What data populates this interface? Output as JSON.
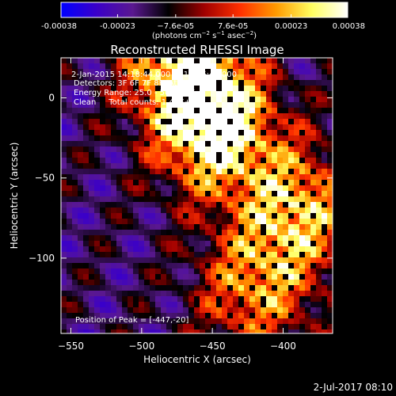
{
  "chart_data": {
    "type": "heatmap",
    "title": "Reconstructed RHESSI Image",
    "xlabel": "Heliocentric X (arcsec)",
    "ylabel": "Heliocentric Y (arcsec)",
    "xlim": [
      -557,
      -365
    ],
    "ylim": [
      -147,
      25
    ],
    "x_ticks": [
      -550,
      -500,
      -450,
      -400
    ],
    "x_tick_labels": [
      "−550",
      "−500",
      "−450",
      "−400"
    ],
    "y_ticks": [
      -100,
      -50,
      0
    ],
    "y_tick_labels": [
      "−100",
      "−50",
      "0"
    ],
    "colorbar": {
      "range": [
        -0.00038,
        0.00038
      ],
      "ticks": [
        -0.00038,
        -0.00023,
        -7.6e-05,
        7.6e-05,
        0.00023,
        0.00038
      ],
      "tick_labels": [
        "-0.00038",
        "-0.00023",
        "−7.6e-05",
        "7.6e-05",
        "0.00023",
        "0.00038"
      ],
      "units_text": "(photons cm",
      "units_exp1": "−2",
      "units_s": " s",
      "units_exp2": "−1",
      "units_asec": " asec",
      "units_exp3": "−2",
      "units_close": ")",
      "colors": [
        "#0000ff",
        "#3b00c8",
        "#5a1890",
        "#000000",
        "#a00000",
        "#ff3000",
        "#ff9a00",
        "#ffff60",
        "#ffffff"
      ]
    },
    "annotations": {
      "time_range": "2-Jan-2015 14:18:44.000 to 14:26:44.000",
      "detectors": "Detectors: 3F 6F 7F 8F, Att 0",
      "energy_range": "Energy Range: 25.0 - 50.0 keV",
      "method": "Clean     Total counts: 1.42E+04",
      "peak": "Position of Peak = [-447,-20]"
    },
    "peak_position": [
      -447,
      -20
    ],
    "emission_sources": [
      {
        "x": -470,
        "y": 20,
        "peak_fraction": 0.9
      },
      {
        "x": -447,
        "y": -20,
        "peak_fraction": 1.0
      },
      {
        "x": -390,
        "y": -70,
        "peak_fraction": 0.75
      },
      {
        "x": -420,
        "y": -120,
        "peak_fraction": 0.6
      }
    ]
  },
  "footer": {
    "timestamp": "2-Jul-2017 08:10"
  }
}
